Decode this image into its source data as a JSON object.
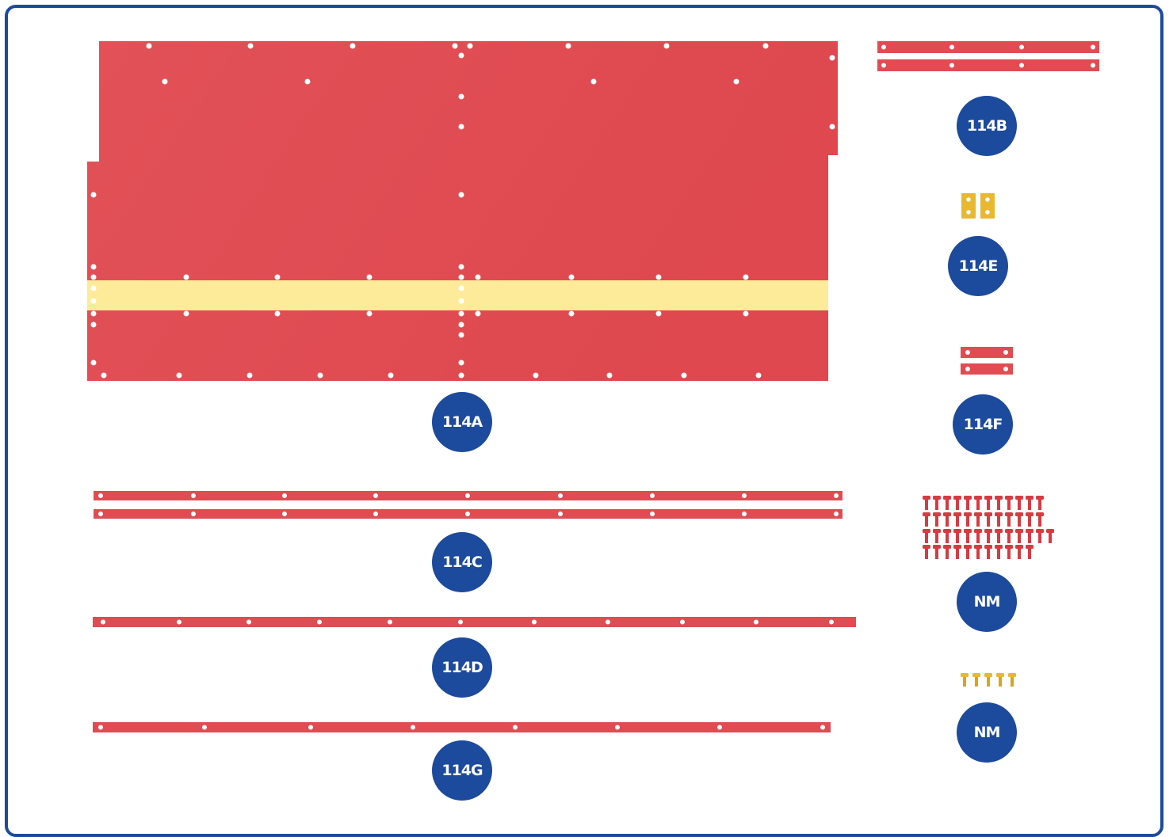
{
  "colors": {
    "frame": "#1c4a9c",
    "badge": "#1c4a9c",
    "panel": "#e04c52",
    "tape": "#fdeb9a",
    "brass": "#e8b830",
    "screw_red": "#d63b42"
  },
  "labels": {
    "p114a": "114A",
    "p114b": "114B",
    "p114c": "114C",
    "p114d": "114D",
    "p114e": "114E",
    "p114f": "114F",
    "p114g": "114G",
    "nm_red": "NM",
    "nm_brass": "NM"
  },
  "quantities": {
    "red_screws": 48,
    "brass_screws": 5
  }
}
